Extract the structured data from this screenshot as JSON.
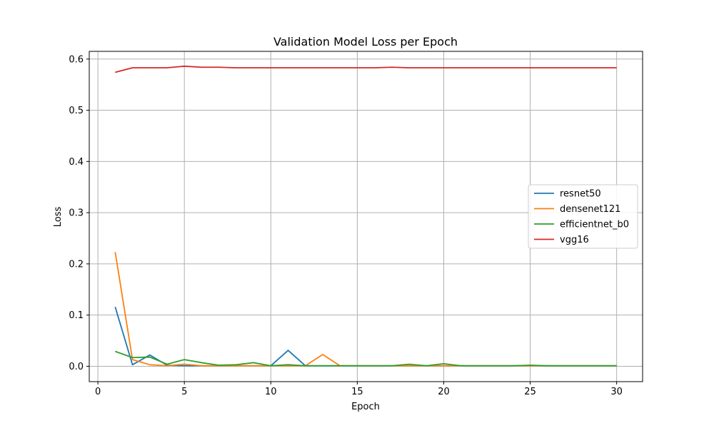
{
  "chart_data": {
    "type": "line",
    "title": "Validation Model Loss per Epoch",
    "xlabel": "Epoch",
    "ylabel": "Loss",
    "xlim": [
      -0.5,
      31.5
    ],
    "ylim": [
      -0.03,
      0.615
    ],
    "xticks": [
      0,
      5,
      10,
      15,
      20,
      25,
      30
    ],
    "yticks": [
      0.0,
      0.1,
      0.2,
      0.3,
      0.4,
      0.5,
      0.6
    ],
    "xtick_labels": [
      "0",
      "5",
      "10",
      "15",
      "20",
      "25",
      "30"
    ],
    "ytick_labels": [
      "0.0",
      "0.1",
      "0.2",
      "0.3",
      "0.4",
      "0.5",
      "0.6"
    ],
    "grid": true,
    "legend_position": "center-right",
    "x": [
      1,
      2,
      3,
      4,
      5,
      6,
      7,
      8,
      9,
      10,
      11,
      12,
      13,
      14,
      15,
      16,
      17,
      18,
      19,
      20,
      21,
      22,
      23,
      24,
      25,
      26,
      27,
      28,
      29,
      30
    ],
    "series": [
      {
        "name": "resnet50",
        "color": "#1f77b4",
        "values": [
          0.116,
          0.003,
          0.022,
          0.002,
          0.001,
          0.001,
          0.001,
          0.001,
          0.001,
          0.001,
          0.031,
          0.001,
          0.001,
          0.001,
          0.001,
          0.001,
          0.001,
          0.001,
          0.001,
          0.001,
          0.001,
          0.001,
          0.001,
          0.001,
          0.001,
          0.001,
          0.001,
          0.001,
          0.001,
          0.001
        ]
      },
      {
        "name": "densenet121",
        "color": "#ff7f0e",
        "values": [
          0.223,
          0.013,
          0.003,
          0.001,
          0.004,
          0.001,
          0.001,
          0.001,
          0.001,
          0.001,
          0.001,
          0.001,
          0.023,
          0.001,
          0.001,
          0.001,
          0.001,
          0.001,
          0.001,
          0.001,
          0.001,
          0.001,
          0.001,
          0.001,
          0.001,
          0.001,
          0.001,
          0.001,
          0.001,
          0.001
        ]
      },
      {
        "name": "efficientnet_b0",
        "color": "#2ca02c",
        "values": [
          0.029,
          0.017,
          0.018,
          0.004,
          0.013,
          0.007,
          0.002,
          0.003,
          0.007,
          0.001,
          0.003,
          0.001,
          0.001,
          0.001,
          0.001,
          0.001,
          0.001,
          0.004,
          0.001,
          0.005,
          0.001,
          0.001,
          0.001,
          0.001,
          0.002,
          0.001,
          0.001,
          0.001,
          0.001,
          0.001
        ]
      },
      {
        "name": "vgg16",
        "color": "#d62728",
        "values": [
          0.574,
          0.583,
          0.583,
          0.583,
          0.586,
          0.584,
          0.584,
          0.583,
          0.583,
          0.583,
          0.583,
          0.583,
          0.583,
          0.583,
          0.583,
          0.583,
          0.584,
          0.583,
          0.583,
          0.583,
          0.583,
          0.583,
          0.583,
          0.583,
          0.583,
          0.583,
          0.583,
          0.583,
          0.583,
          0.583
        ]
      }
    ]
  }
}
